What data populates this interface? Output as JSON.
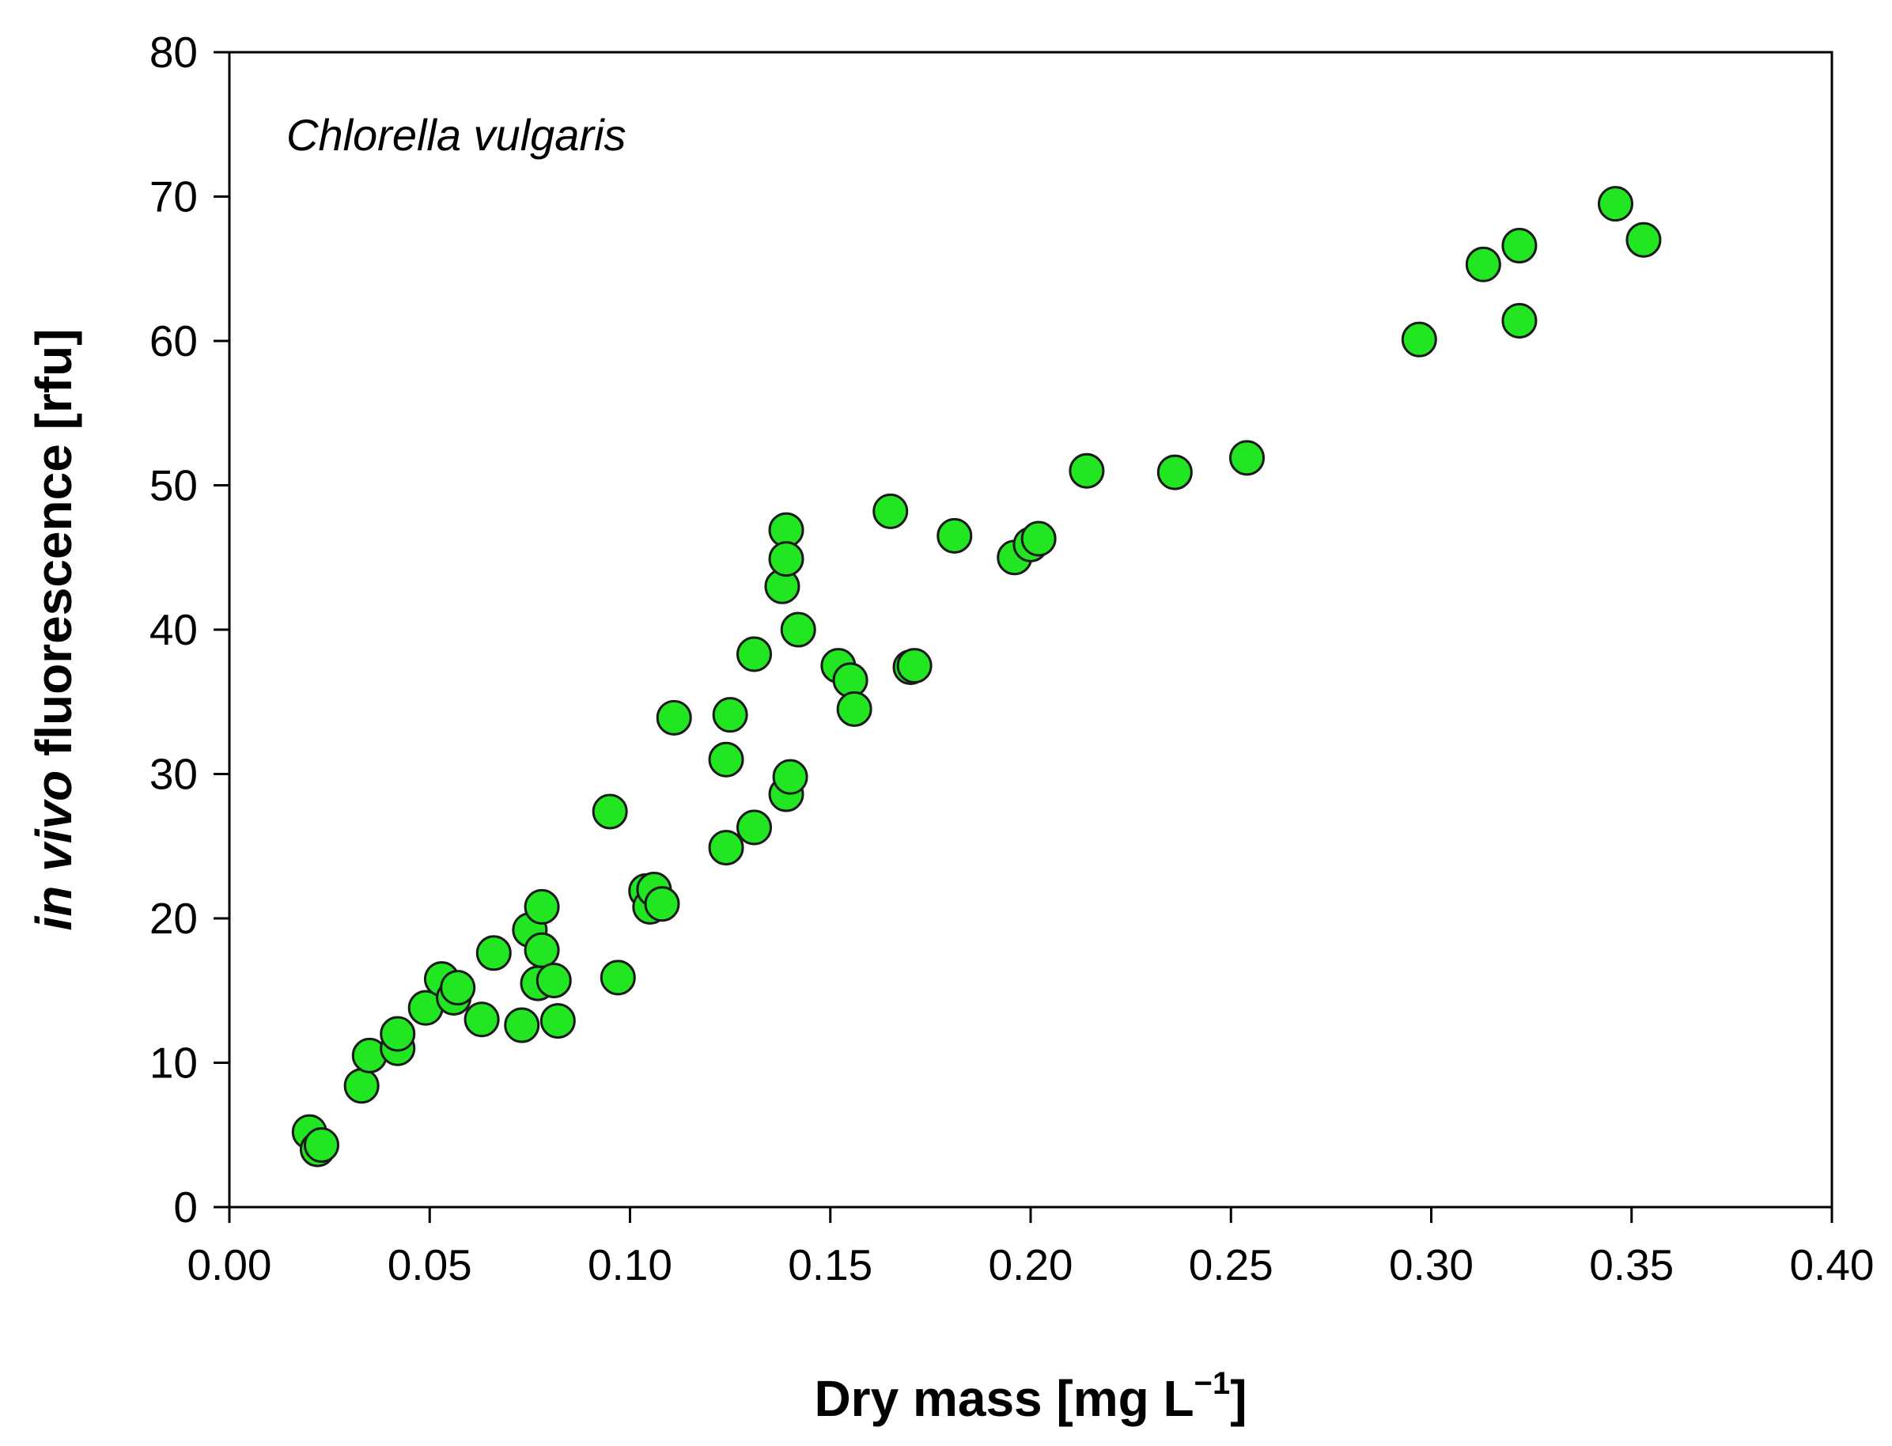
{
  "chart_data": {
    "type": "scatter",
    "title": "",
    "annotation": "Chlorella vulgaris",
    "xlabel": {
      "text": "Dry mass [mg L",
      "superscript": "−1",
      "close": "]"
    },
    "ylabel": {
      "italic": "in vivo",
      "normal": " fluorescence [rfu]"
    },
    "xlim": [
      0.0,
      0.4
    ],
    "ylim": [
      0,
      80
    ],
    "x_ticks": [
      "0.00",
      "0.05",
      "0.10",
      "0.15",
      "0.20",
      "0.25",
      "0.30",
      "0.35",
      "0.40"
    ],
    "x_tick_values": [
      0.0,
      0.05,
      0.1,
      0.15,
      0.2,
      0.25,
      0.3,
      0.35,
      0.4
    ],
    "y_ticks": [
      "0",
      "10",
      "20",
      "30",
      "40",
      "50",
      "60",
      "70",
      "80"
    ],
    "y_tick_values": [
      0,
      10,
      20,
      30,
      40,
      50,
      60,
      70,
      80
    ],
    "grid": false,
    "marker_color": "#22e622",
    "marker_edge": "#1a1a1a",
    "series": [
      {
        "name": "Chlorella vulgaris",
        "points": [
          [
            0.02,
            5.2
          ],
          [
            0.022,
            4.0
          ],
          [
            0.023,
            4.3
          ],
          [
            0.033,
            8.4
          ],
          [
            0.035,
            10.5
          ],
          [
            0.042,
            11.0
          ],
          [
            0.042,
            12.0
          ],
          [
            0.049,
            13.8
          ],
          [
            0.053,
            15.8
          ],
          [
            0.056,
            14.5
          ],
          [
            0.057,
            15.2
          ],
          [
            0.063,
            13.0
          ],
          [
            0.066,
            17.6
          ],
          [
            0.073,
            12.6
          ],
          [
            0.075,
            19.2
          ],
          [
            0.077,
            15.5
          ],
          [
            0.078,
            17.8
          ],
          [
            0.078,
            20.8
          ],
          [
            0.081,
            15.7
          ],
          [
            0.082,
            12.9
          ],
          [
            0.095,
            27.4
          ],
          [
            0.097,
            15.9
          ],
          [
            0.104,
            21.9
          ],
          [
            0.105,
            20.8
          ],
          [
            0.106,
            22.0
          ],
          [
            0.108,
            21.0
          ],
          [
            0.111,
            33.9
          ],
          [
            0.124,
            24.9
          ],
          [
            0.124,
            31.0
          ],
          [
            0.125,
            34.1
          ],
          [
            0.131,
            26.3
          ],
          [
            0.131,
            38.3
          ],
          [
            0.138,
            43.0
          ],
          [
            0.139,
            28.6
          ],
          [
            0.139,
            46.9
          ],
          [
            0.139,
            44.9
          ],
          [
            0.14,
            29.8
          ],
          [
            0.142,
            40.0
          ],
          [
            0.152,
            37.5
          ],
          [
            0.155,
            36.5
          ],
          [
            0.156,
            34.5
          ],
          [
            0.165,
            48.2
          ],
          [
            0.17,
            37.4
          ],
          [
            0.171,
            37.5
          ],
          [
            0.181,
            46.5
          ],
          [
            0.196,
            45.0
          ],
          [
            0.2,
            45.9
          ],
          [
            0.202,
            46.3
          ],
          [
            0.214,
            51.0
          ],
          [
            0.236,
            50.9
          ],
          [
            0.254,
            51.9
          ],
          [
            0.297,
            60.1
          ],
          [
            0.313,
            65.3
          ],
          [
            0.322,
            66.6
          ],
          [
            0.322,
            61.4
          ],
          [
            0.346,
            69.5
          ],
          [
            0.353,
            67.0
          ]
        ]
      }
    ]
  }
}
